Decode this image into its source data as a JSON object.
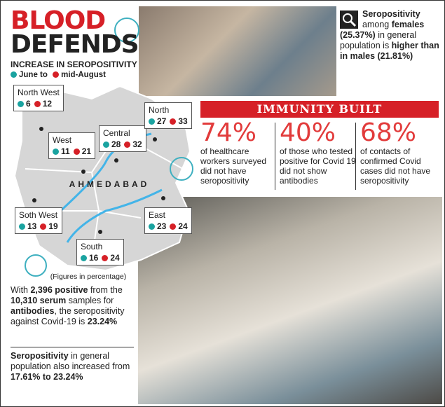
{
  "header": {
    "title_line1": "BLOOD",
    "title_line2": "DEFENDS",
    "subtitle": "INCREASE IN SEROPOSITIVITY",
    "legend": [
      "June to",
      "mid-August"
    ]
  },
  "map": {
    "city": "AHMEDABAD",
    "note": "(Figures in percentage)",
    "zones": [
      {
        "name": "North West",
        "june": 6,
        "august": 12
      },
      {
        "name": "West",
        "june": 11,
        "august": 21
      },
      {
        "name": "Central",
        "june": 28,
        "august": 32
      },
      {
        "name": "North",
        "june": 27,
        "august": 33
      },
      {
        "name": "Soth West",
        "june": 13,
        "august": 19
      },
      {
        "name": "East",
        "june": 23,
        "august": 24
      },
      {
        "name": "South",
        "june": 16,
        "august": 24
      }
    ]
  },
  "callout": {
    "segments": [
      {
        "text": "Seropositivity",
        "bold": true
      },
      {
        "text": " among ",
        "bold": false
      },
      {
        "text": "females (25.37%)",
        "bold": true
      },
      {
        "text": " in general population is ",
        "bold": false
      },
      {
        "text": "higher than in males (21.81%)",
        "bold": true
      }
    ]
  },
  "immunity": {
    "title": "IMMUNITY BUILT",
    "stats": [
      {
        "value": "74%",
        "text": "of healthcare workers surveyed did not have seropositivity"
      },
      {
        "value": "40%",
        "text": "of those who tested positive for Covid 19 did not show antibodies"
      },
      {
        "value": "68%",
        "text": "of contacts of confirmed Covid cases did not have seropositivity"
      }
    ]
  },
  "summary": {
    "segments": [
      {
        "text": "With ",
        "bold": false
      },
      {
        "text": "2,396 positive",
        "bold": true
      },
      {
        "text": " from the ",
        "bold": false
      },
      {
        "text": "10,310 serum",
        "bold": true
      },
      {
        "text": " samples for ",
        "bold": false
      },
      {
        "text": "antibodies",
        "bold": true
      },
      {
        "text": ", the seropositivity against Covid-19 is ",
        "bold": false
      },
      {
        "text": "23.24%",
        "bold": true
      }
    ]
  },
  "general": {
    "segments": [
      {
        "text": "Seropositivity",
        "bold": true
      },
      {
        "text": " in general population also increased from ",
        "bold": false
      },
      {
        "text": "17.61% to 23.24%",
        "bold": true
      }
    ]
  }
}
